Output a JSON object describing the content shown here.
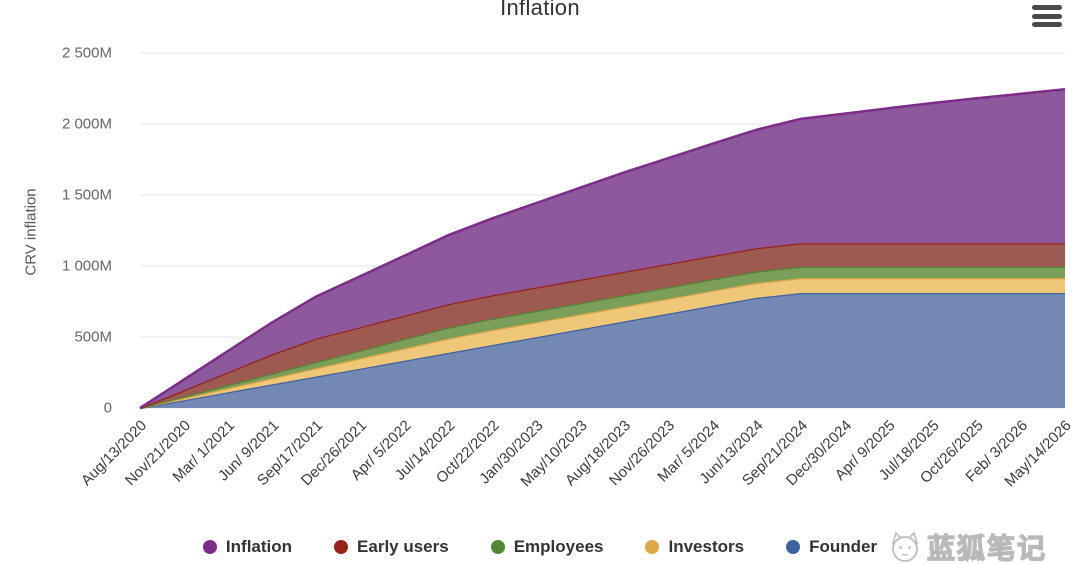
{
  "menu": {
    "icon": "hamburger-menu-icon"
  },
  "watermark": {
    "text": "蓝狐笔记",
    "icon": "fox-logo-icon"
  },
  "chart_data": {
    "type": "area",
    "stacked": true,
    "title": "Inflation",
    "xlabel": "",
    "ylabel": "CRV inflation",
    "ylim": [
      0,
      2500
    ],
    "y_ticks": [
      0,
      500,
      1000,
      1500,
      2000,
      2500
    ],
    "y_tick_labels": [
      "0",
      "500M",
      "1 000M",
      "1 500M",
      "2 000M",
      "2 500M"
    ],
    "unit": "M CRV",
    "grid": true,
    "legend_position": "bottom",
    "grid_color": "#e6e6e6",
    "categories": [
      "Aug/13/2020",
      "Nov/21/2020",
      "Mar/ 1/2021",
      "Jun/ 9/2021",
      "Sep/17/2021",
      "Dec/26/2021",
      "Apr/ 5/2022",
      "Jul/14/2022",
      "Oct/22/2022",
      "Jan/30/2023",
      "May/10/2023",
      "Aug/18/2023",
      "Nov/26/2023",
      "Mar/ 5/2024",
      "Jun/13/2024",
      "Sep/21/2024",
      "Dec/30/2024",
      "Apr/ 9/2025",
      "Jul/18/2025",
      "Oct/26/2025",
      "Feb/ 3/2026",
      "May/14/2026"
    ],
    "series": [
      {
        "name": "Inflation",
        "color": "#7e2c8a",
        "fill": "#8e589c",
        "values": [
          0,
          75,
          150,
          225,
          296,
          359,
          422,
          486,
          542,
          595,
          648,
          700,
          745,
          790,
          834,
          876,
          913,
          951,
          988,
          1022,
          1053,
          1085
        ]
      },
      {
        "name": "Early users",
        "color": "#96231a",
        "fill": "#9d5a50",
        "values": [
          0,
          45,
          90,
          136,
          165,
          165,
          165,
          165,
          165,
          165,
          165,
          165,
          165,
          165,
          165,
          165,
          165,
          165,
          165,
          165,
          165,
          165
        ]
      },
      {
        "name": "Employees",
        "color": "#518735",
        "fill": "#7b9e59",
        "values": [
          0,
          11,
          22,
          33,
          44,
          55,
          66,
          77,
          80,
          80,
          80,
          80,
          80,
          80,
          80,
          80,
          80,
          80,
          80,
          80,
          80,
          80
        ]
      },
      {
        "name": "Investors",
        "color": "#dda747",
        "fill": "#eec778",
        "values": [
          0,
          14,
          29,
          43,
          58,
          72,
          86,
          101,
          105,
          105,
          105,
          105,
          105,
          105,
          105,
          105,
          105,
          105,
          105,
          105,
          105,
          105
        ]
      },
      {
        "name": "Founder",
        "color": "#3d61a2",
        "fill": "#7389b3",
        "values": [
          0,
          55,
          111,
          166,
          222,
          277,
          333,
          388,
          444,
          499,
          554,
          610,
          665,
          721,
          776,
          810,
          810,
          810,
          810,
          810,
          810,
          810
        ]
      }
    ]
  }
}
